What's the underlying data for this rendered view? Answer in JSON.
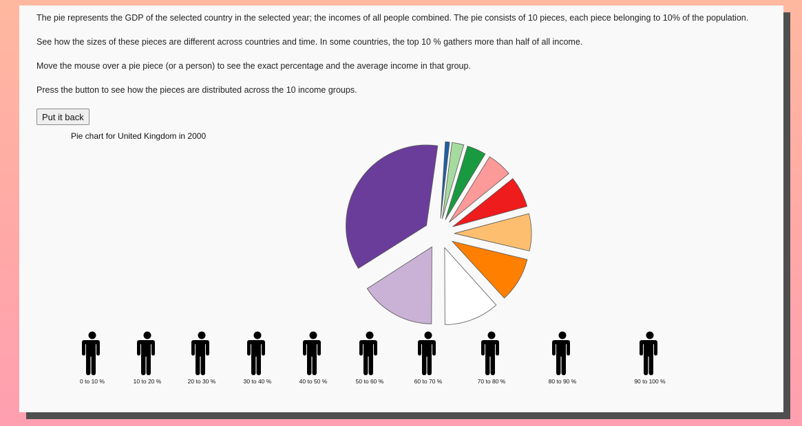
{
  "paragraphs": [
    "The pie represents the GDP of the selected country in the selected year; the incomes of all people combined. The pie consists of 10 pieces, each piece belonging to 10% of the population.",
    "See how the sizes of these pieces are different across countries and time. In some countries, the top 10 % gathers more than half of all income.",
    "Move the mouse over a pie piece (or a person) to see the exact percentage and the average income in that group.",
    "Press the button to see how the pieces are distributed across the 10 income groups."
  ],
  "button_label": "Put it back",
  "chart_data": {
    "type": "pie",
    "title": "Pie chart for United Kingdom in 2000",
    "country": "United Kingdom",
    "year": "2000",
    "categories": [
      "0 to 10 %",
      "10 to 20 %",
      "20 to 30 %",
      "30 to 40 %",
      "40 to 50 %",
      "50 to 60 %",
      "60 to 70 %",
      "70 to 80 %",
      "80 to 90 %",
      "90 to 100 %"
    ],
    "values": [
      0.9,
      2.5,
      4.0,
      5.3,
      6.5,
      7.8,
      9.4,
      11.6,
      15.8,
      36.2
    ],
    "unit": "% of income",
    "colors": [
      "#1f5fa6",
      "#a6dba0",
      "#1a9a40",
      "#fb9a99",
      "#ee1c1c",
      "#fdbf6f",
      "#ff7f00",
      "#ffffff",
      "#cab2d6",
      "#6a3d9a"
    ],
    "grid": false,
    "legend": "none"
  }
}
